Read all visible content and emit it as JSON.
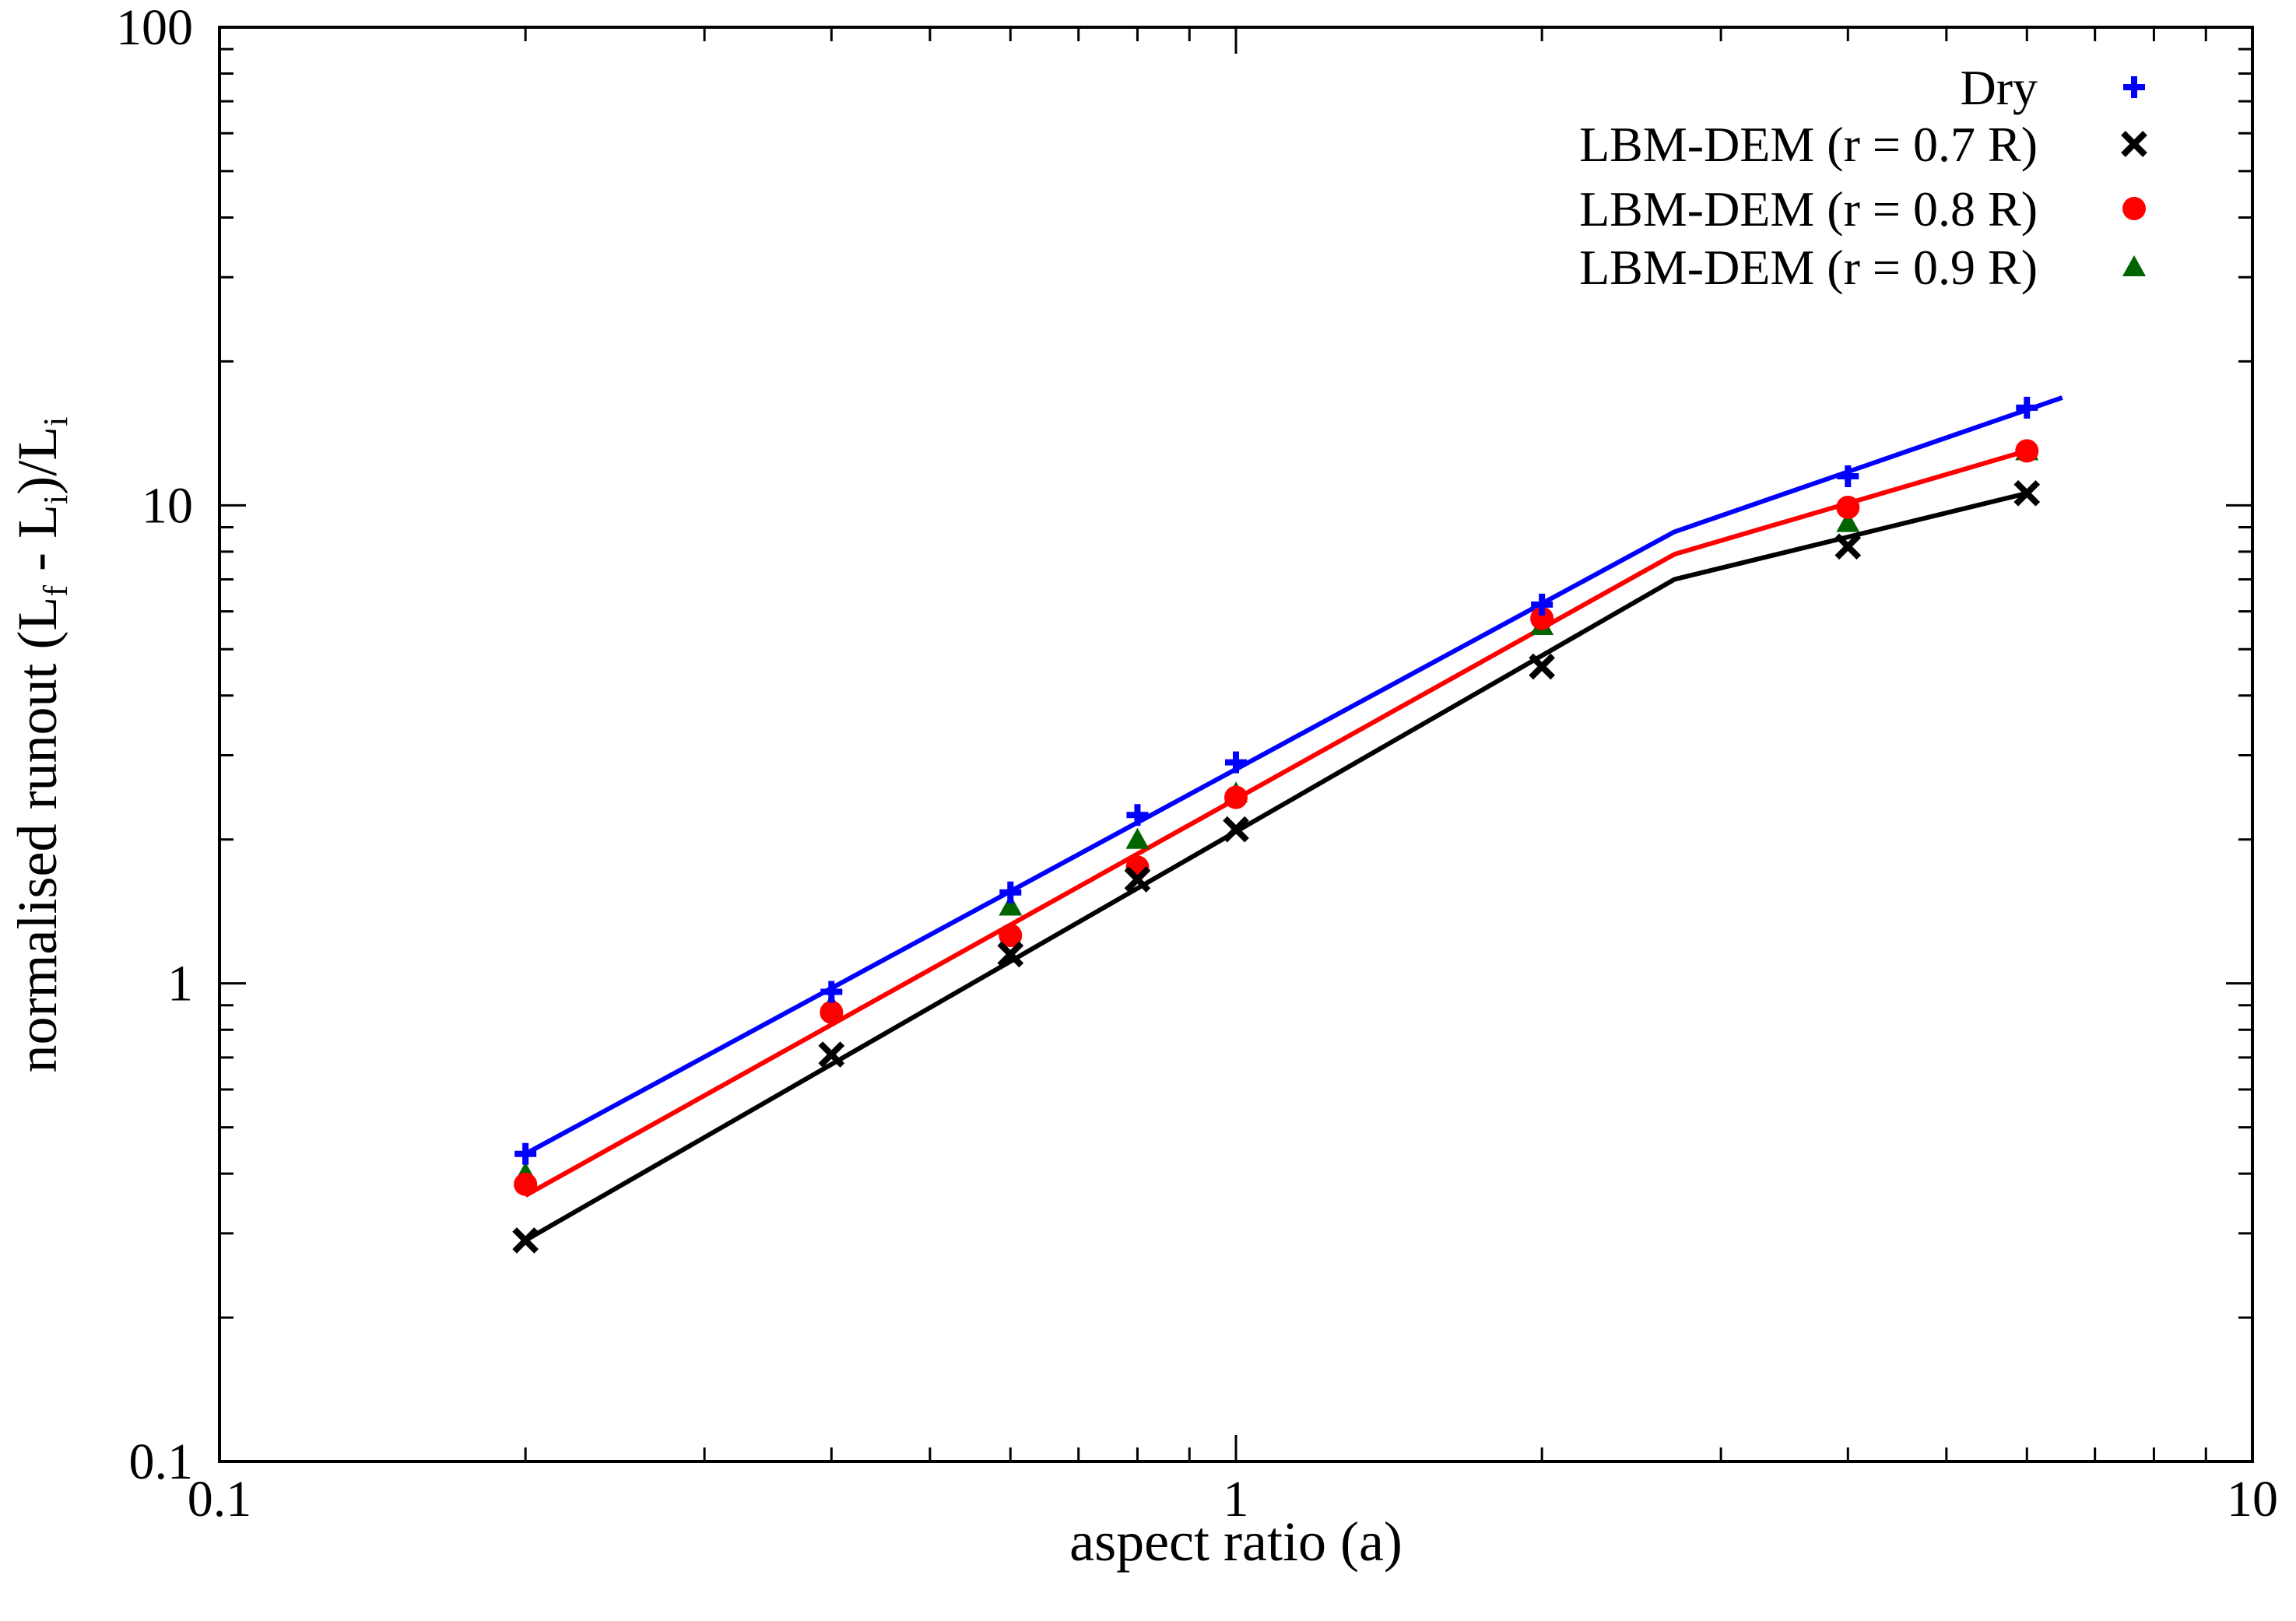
{
  "chart_data": {
    "type": "scatter",
    "title": "",
    "xlabel": "aspect ratio (a)",
    "ylabel": "normalised runout (L_f - L_i)/L_i",
    "ylabel_parts": {
      "prefix": "normalised runout (L",
      "sub_f": "f",
      "middle": " - L",
      "sub_i1": "i",
      "suffix": ")/L",
      "sub_i2": "i"
    },
    "xscale": "log",
    "yscale": "log",
    "xlim": [
      0.1,
      10
    ],
    "ylim": [
      0.1,
      100
    ],
    "x_tick_labels": [
      "0.1",
      "1",
      "10"
    ],
    "y_tick_labels": [
      "0.1",
      "1",
      "10",
      "100"
    ],
    "grid": false,
    "legend_position": "top-right",
    "series": [
      {
        "name": "Dry",
        "marker": "plus",
        "color": "#0000ff",
        "x": [
          0.2,
          0.4,
          0.6,
          0.8,
          1.0,
          2.0,
          4.0,
          6.0
        ],
        "y": [
          0.44,
          0.96,
          1.55,
          2.25,
          2.9,
          6.2,
          11.5,
          16.0
        ]
      },
      {
        "name": "LBM-DEM (r = 0.7 R)",
        "marker": "cross",
        "color": "#000000",
        "x": [
          0.2,
          0.4,
          0.6,
          0.8,
          1.0,
          2.0,
          4.0,
          6.0
        ],
        "y": [
          0.29,
          0.71,
          1.15,
          1.65,
          2.1,
          4.6,
          8.2,
          10.6
        ]
      },
      {
        "name": "LBM-DEM (r = 0.8 R)",
        "marker": "circle",
        "color": "#ff0000",
        "x": [
          0.2,
          0.4,
          0.6,
          0.8,
          1.0,
          2.0,
          4.0,
          6.0
        ],
        "y": [
          0.38,
          0.87,
          1.26,
          1.75,
          2.45,
          5.8,
          9.9,
          13.0
        ]
      },
      {
        "name": "LBM-DEM (r = 0.9 R)",
        "marker": "triangle",
        "color": "#006400",
        "x": [
          0.2,
          0.4,
          0.6,
          0.8,
          1.0,
          2.0,
          4.0,
          6.0
        ],
        "y": [
          0.4,
          0.9,
          1.45,
          2.0,
          2.5,
          5.6,
          9.2,
          13.0
        ]
      }
    ],
    "fit_lines": [
      {
        "color": "#0000ff",
        "x": [
          0.2,
          2.7,
          6.5
        ],
        "y": [
          0.44,
          8.8,
          16.8
        ]
      },
      {
        "color": "#ff0000",
        "x": [
          0.2,
          2.7,
          6.0
        ],
        "y": [
          0.36,
          7.9,
          13.0
        ]
      },
      {
        "color": "#000000",
        "x": [
          0.2,
          2.7,
          6.0
        ],
        "y": [
          0.29,
          7.0,
          10.6
        ]
      }
    ]
  }
}
